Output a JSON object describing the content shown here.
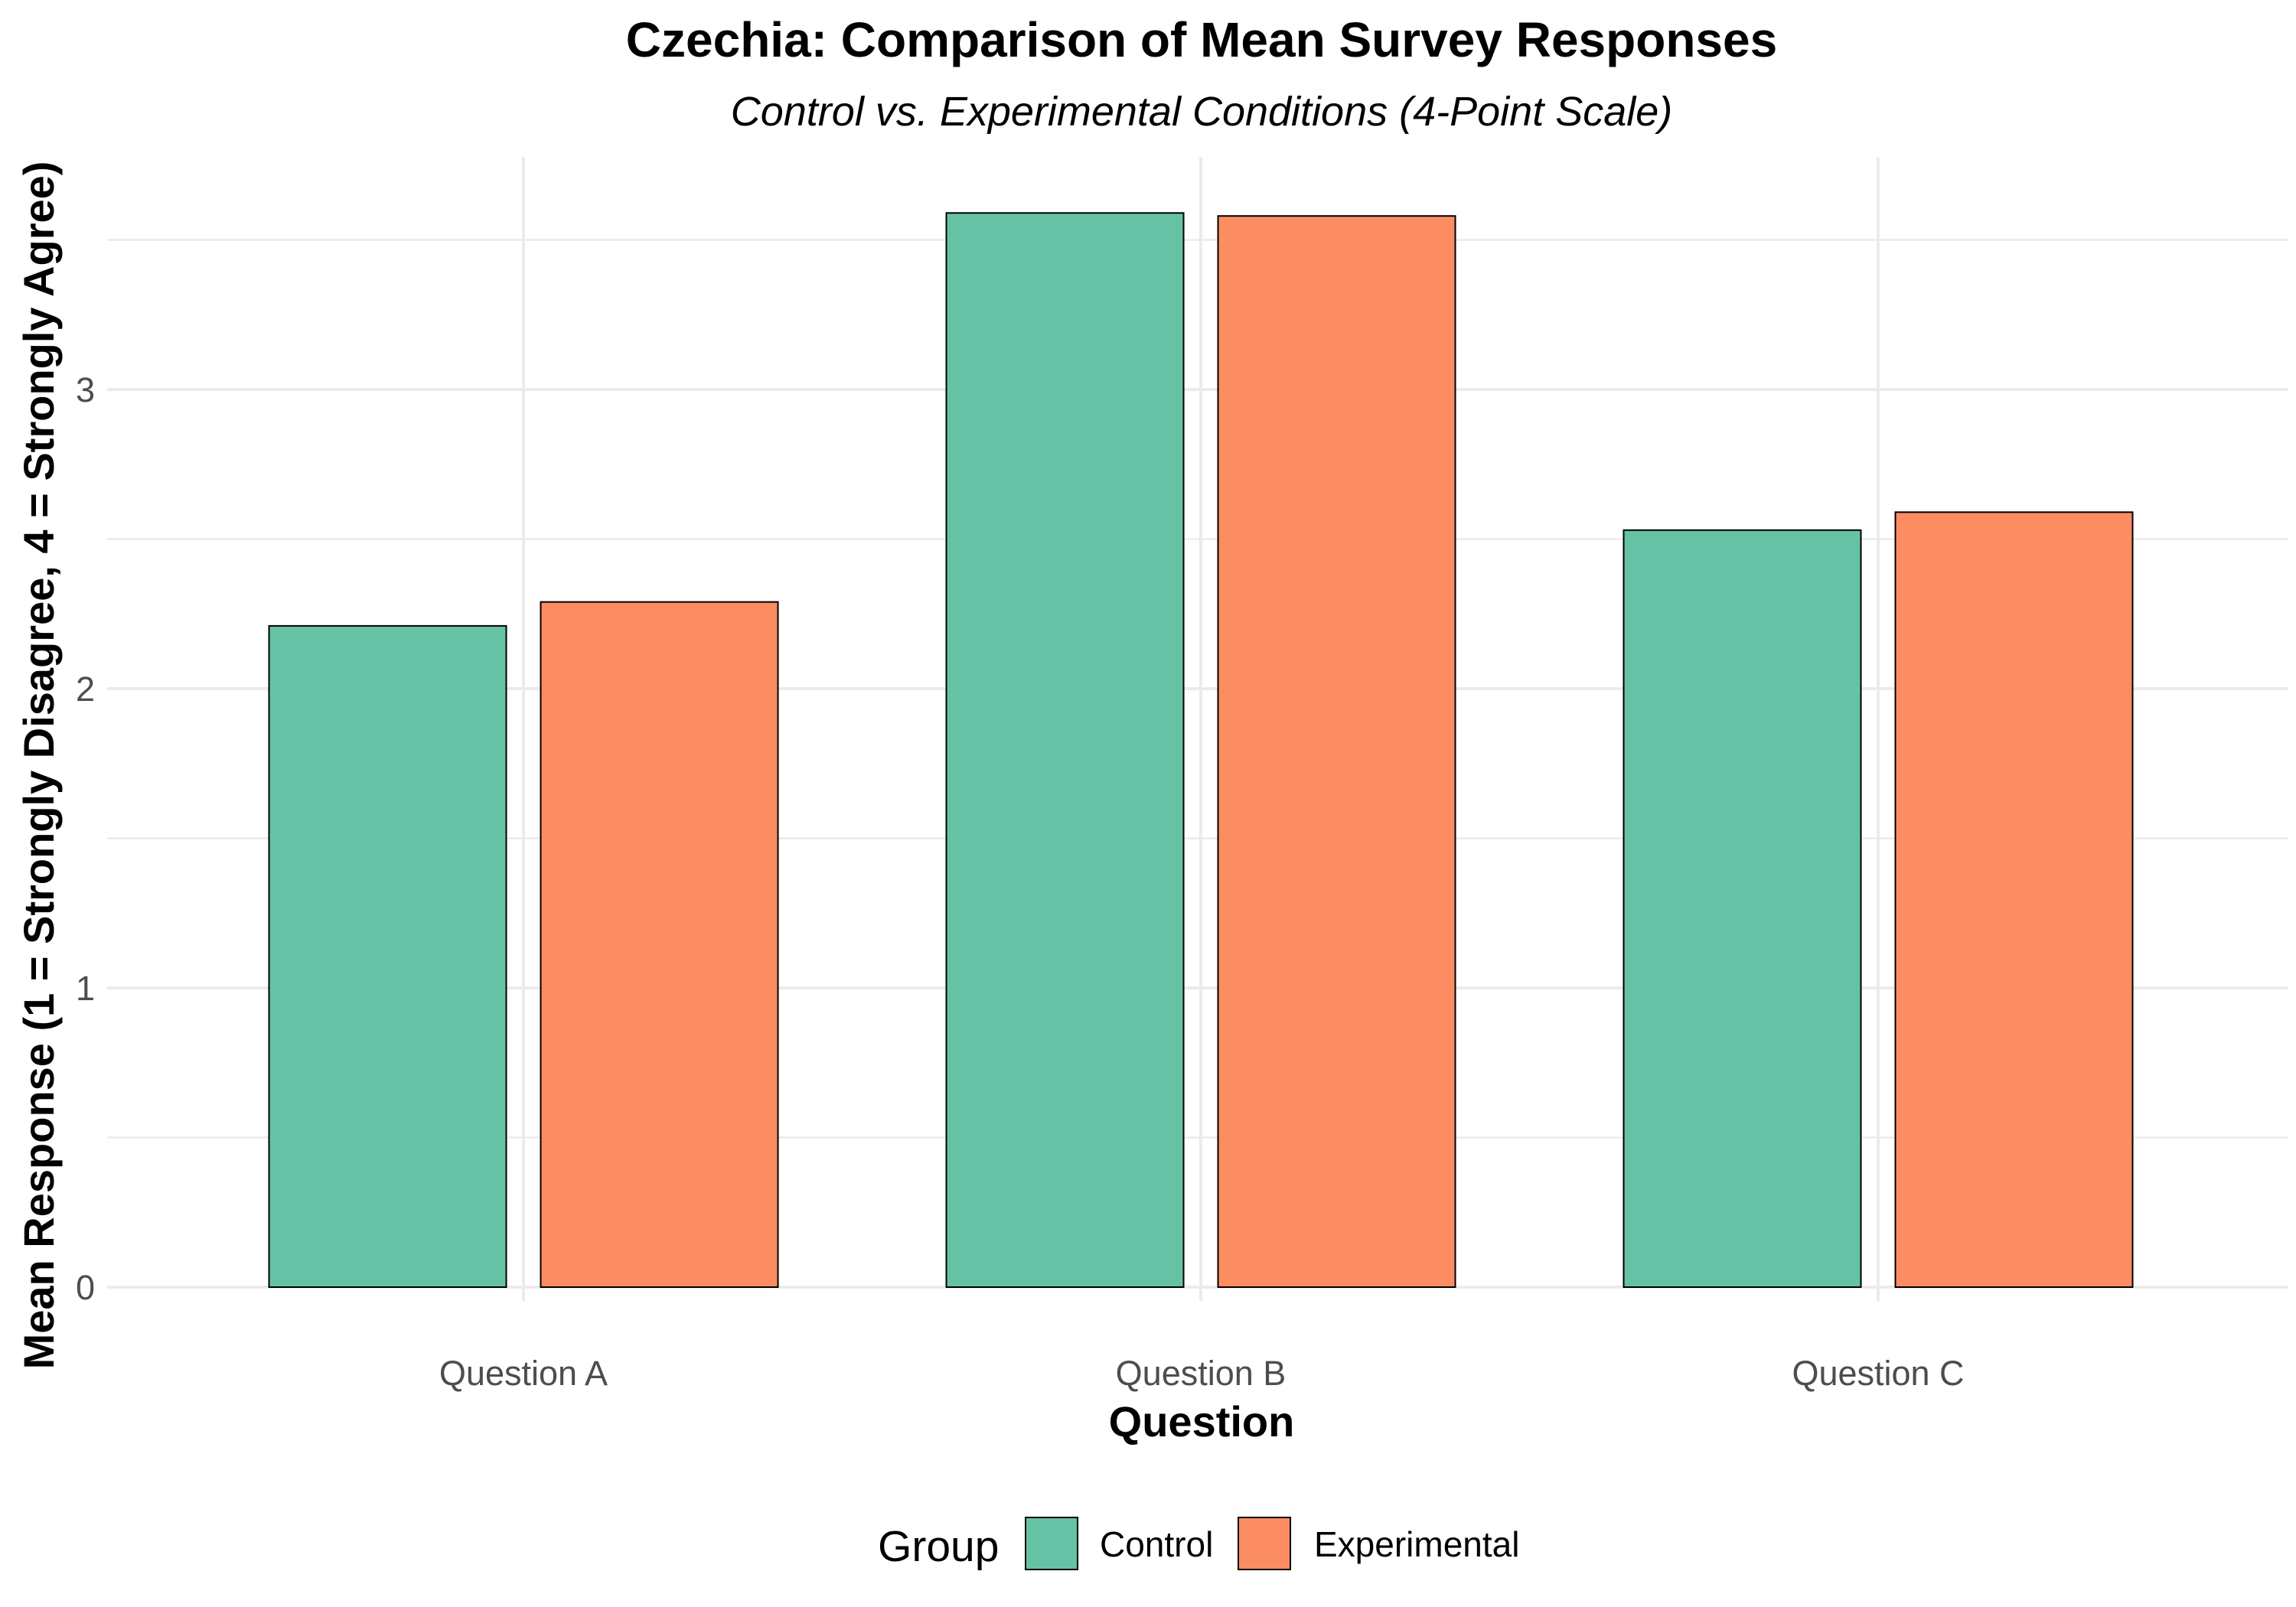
{
  "chart_data": {
    "type": "bar",
    "title": "Czechia: Comparison of Mean Survey Responses",
    "subtitle": "Control vs. Experimental Conditions (4-Point Scale)",
    "xlabel": "Question",
    "ylabel": "Mean Response (1 = Strongly Disagree, 4 = Strongly Agree)",
    "categories": [
      "Question A",
      "Question B",
      "Question C"
    ],
    "series": [
      {
        "name": "Control",
        "color": "#66c2a5",
        "values": [
          2.21,
          3.59,
          2.53
        ]
      },
      {
        "name": "Experimental",
        "color": "#fc8d62",
        "values": [
          2.29,
          3.58,
          2.59
        ]
      }
    ],
    "ylim": [
      0,
      3.6
    ],
    "yticks": [
      0,
      1,
      2,
      3
    ],
    "ytick_labels": [
      "0",
      "1",
      "2",
      "3"
    ],
    "grid": true,
    "legend": {
      "title": "Group",
      "position": "bottom"
    }
  }
}
